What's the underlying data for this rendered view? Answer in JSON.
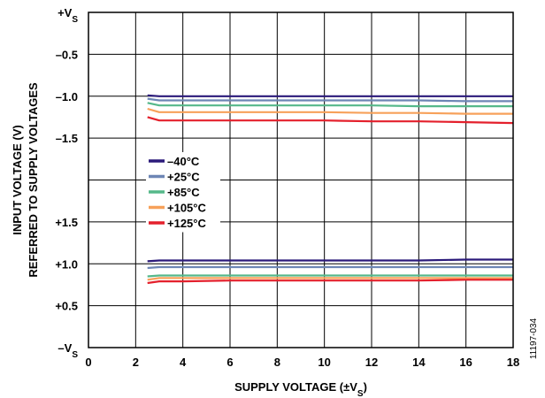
{
  "chart_data": {
    "type": "line",
    "xlabel": "SUPPLY VOLTAGE (±V",
    "xlabel_sub": "S",
    "xlabel_suffix": ")",
    "ylabel_line1": "INPUT VOLTAGE (V)",
    "ylabel_line2": "REFERRED TO SUPPLY VOLTAGES",
    "figure_id": "11197-034",
    "x_ticks": [
      "0",
      "2",
      "4",
      "6",
      "8",
      "10",
      "12",
      "14",
      "16",
      "18"
    ],
    "xlim": [
      0,
      18
    ],
    "y_ticks": [
      {
        "text": "+V",
        "sub": "S"
      },
      {
        "text": "–0.5",
        "sub": ""
      },
      {
        "text": "–1.0",
        "sub": ""
      },
      {
        "text": "–1.5",
        "sub": ""
      },
      {
        "text": "",
        "sub": ""
      },
      {
        "text": "+1.5",
        "sub": ""
      },
      {
        "text": "+1.0",
        "sub": ""
      },
      {
        "text": "+0.5",
        "sub": ""
      },
      {
        "text": "–V",
        "sub": "S"
      }
    ],
    "grid": true,
    "legend_position": "center-left",
    "upper_region_note": "values referenced to +VS (0 at top, -2.0 at middle)",
    "lower_region_note": "values referenced to -VS (0 at bottom, +2.0 at middle)",
    "series": [
      {
        "name": "–40°C",
        "color": "#2b1a7a",
        "upper": {
          "x": [
            2.5,
            3,
            4,
            6,
            8,
            10,
            12,
            14,
            16,
            18
          ],
          "y": [
            -0.99,
            -1.0,
            -1.0,
            -1.0,
            -1.0,
            -1.0,
            -1.0,
            -1.0,
            -1.0,
            -1.0
          ]
        },
        "lower": {
          "x": [
            2.5,
            3,
            4,
            6,
            8,
            10,
            12,
            14,
            16,
            18
          ],
          "y": [
            1.03,
            1.04,
            1.04,
            1.04,
            1.04,
            1.04,
            1.04,
            1.04,
            1.05,
            1.05
          ]
        }
      },
      {
        "name": "+25°C",
        "color": "#6d86b5",
        "upper": {
          "x": [
            2.5,
            3,
            4,
            6,
            8,
            10,
            12,
            14,
            16,
            18
          ],
          "y": [
            -1.03,
            -1.05,
            -1.05,
            -1.05,
            -1.05,
            -1.05,
            -1.05,
            -1.05,
            -1.06,
            -1.06
          ]
        },
        "lower": {
          "x": [
            2.5,
            3,
            4,
            6,
            8,
            10,
            12,
            14,
            16,
            18
          ],
          "y": [
            0.95,
            0.96,
            0.96,
            0.96,
            0.96,
            0.96,
            0.96,
            0.96,
            0.96,
            0.96
          ]
        }
      },
      {
        "name": "+85°C",
        "color": "#55b88a",
        "upper": {
          "x": [
            2.5,
            3,
            4,
            6,
            8,
            10,
            12,
            14,
            16,
            18
          ],
          "y": [
            -1.08,
            -1.11,
            -1.11,
            -1.11,
            -1.11,
            -1.11,
            -1.11,
            -1.12,
            -1.12,
            -1.12
          ]
        },
        "lower": {
          "x": [
            2.5,
            3,
            4,
            6,
            8,
            10,
            12,
            14,
            16,
            18
          ],
          "y": [
            0.85,
            0.86,
            0.86,
            0.86,
            0.86,
            0.86,
            0.86,
            0.86,
            0.86,
            0.86
          ]
        }
      },
      {
        "name": "+105°C",
        "color": "#f7a15a",
        "upper": {
          "x": [
            2.5,
            3,
            4,
            6,
            8,
            10,
            12,
            14,
            16,
            18
          ],
          "y": [
            -1.15,
            -1.19,
            -1.19,
            -1.19,
            -1.19,
            -1.19,
            -1.2,
            -1.2,
            -1.21,
            -1.21
          ]
        },
        "lower": {
          "x": [
            2.5,
            3,
            4,
            6,
            8,
            10,
            12,
            14,
            16,
            18
          ],
          "y": [
            0.81,
            0.83,
            0.83,
            0.83,
            0.83,
            0.83,
            0.83,
            0.83,
            0.83,
            0.83
          ]
        }
      },
      {
        "name": "+125°C",
        "color": "#e4202c",
        "upper": {
          "x": [
            2.5,
            3,
            4,
            6,
            8,
            10,
            12,
            14,
            16,
            18
          ],
          "y": [
            -1.25,
            -1.29,
            -1.29,
            -1.29,
            -1.29,
            -1.29,
            -1.3,
            -1.3,
            -1.31,
            -1.32
          ]
        },
        "lower": {
          "x": [
            2.5,
            3,
            4,
            6,
            8,
            10,
            12,
            14,
            16,
            18
          ],
          "y": [
            0.77,
            0.79,
            0.79,
            0.8,
            0.8,
            0.8,
            0.8,
            0.8,
            0.81,
            0.81
          ]
        }
      }
    ]
  }
}
